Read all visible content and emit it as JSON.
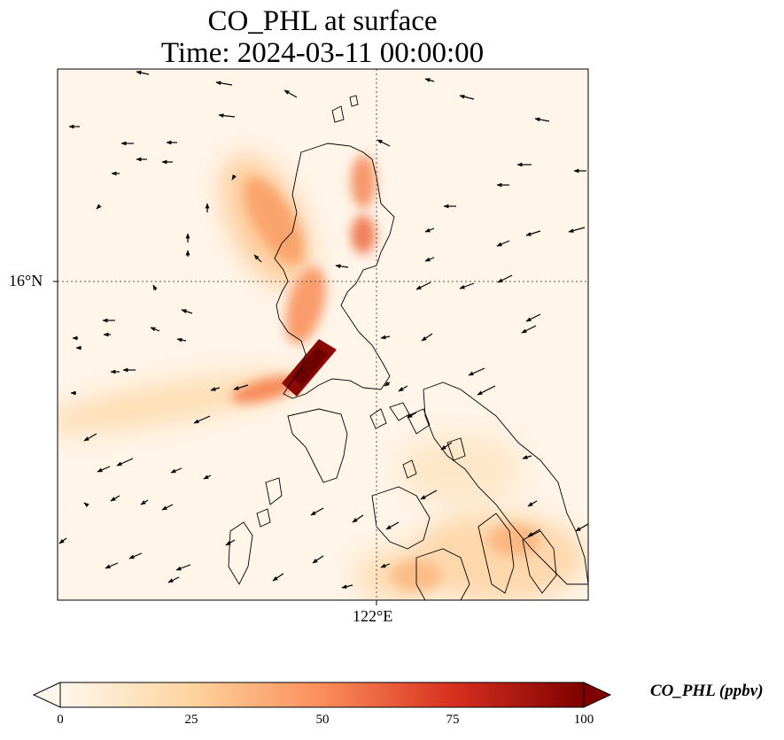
{
  "title": "CO_PHL at surface",
  "subtitle": "Time: 2024-03-11 00:00:00",
  "map": {
    "lat_labels": [
      "16°N"
    ],
    "lon_labels": [
      "122°E"
    ],
    "gridlines": "dotted",
    "features": [
      "coastlines",
      "wind vectors",
      "CO concentration field"
    ]
  },
  "colorbar": {
    "label": "CO_PHL (ppbv)",
    "ticks": [
      "0",
      "25",
      "50",
      "75",
      "100"
    ],
    "min": 0,
    "max": 100,
    "extend": "both",
    "colormap": "OrRd",
    "colors": [
      "#fff7ec",
      "#fdd49e",
      "#fc8d59",
      "#d7301f",
      "#7f0000"
    ]
  }
}
